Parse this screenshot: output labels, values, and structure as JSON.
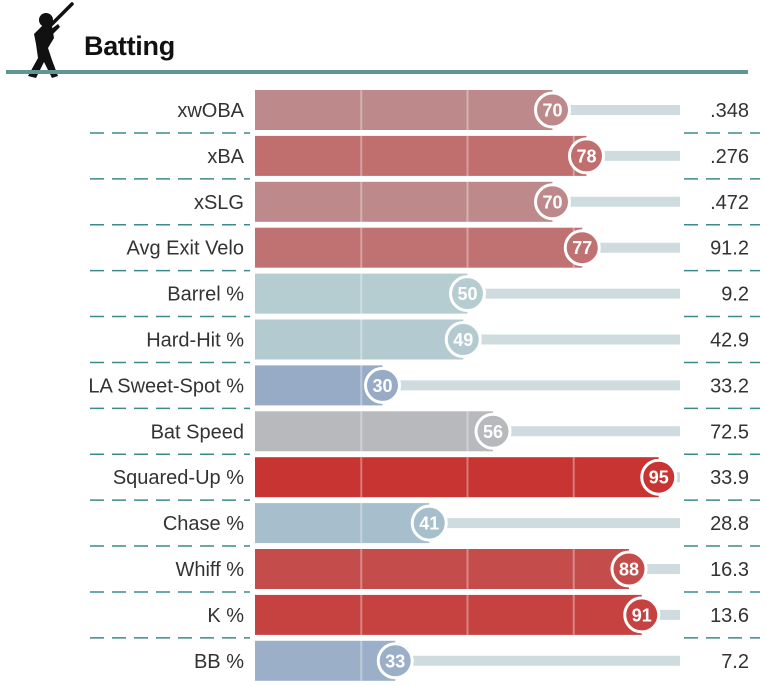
{
  "header": {
    "title": "Batting",
    "icon": "batter-silhouette-icon"
  },
  "chart_data": {
    "type": "bar",
    "orientation": "horizontal",
    "xlim": [
      0,
      100
    ],
    "categories": [
      "xwOBA",
      "xBA",
      "xSLG",
      "Avg Exit Velo",
      "Barrel %",
      "Hard-Hit %",
      "LA Sweet-Spot %",
      "Bat Speed",
      "Squared-Up %",
      "Chase %",
      "Whiff %",
      "K %",
      "BB %"
    ],
    "percentiles": [
      70,
      78,
      70,
      77,
      50,
      49,
      30,
      56,
      95,
      41,
      88,
      91,
      33
    ],
    "stat_values": [
      ".348",
      ".276",
      ".472",
      "91.2",
      "9.2",
      "42.9",
      "33.2",
      "72.5",
      "33.9",
      "28.8",
      "16.3",
      "13.6",
      "7.2"
    ],
    "colors": {
      "low": "#8fa3c4",
      "mid": "#b5cdd1",
      "high": "#c73432",
      "track": "#cfdcdf",
      "divider": "#3d8a8a",
      "header_rule": "#5e9595"
    }
  }
}
